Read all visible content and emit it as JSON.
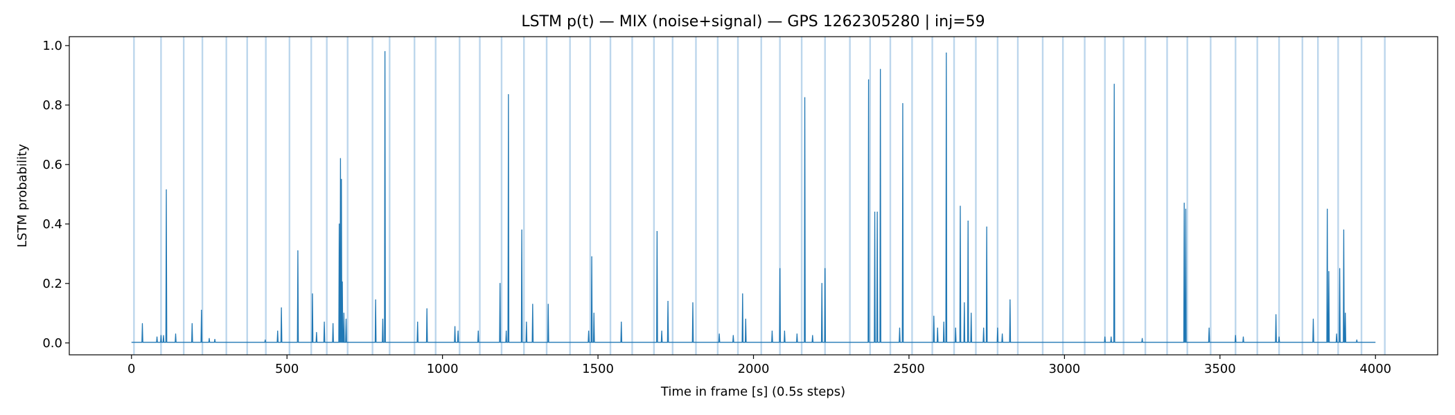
{
  "chart_data": {
    "type": "line",
    "title": "LSTM p(t) — MIX (noise+signal) — GPS 1262305280 | inj=59",
    "xlabel": "Time in frame [s] (0.5s steps)",
    "ylabel": "LSTM probability",
    "xlim": [
      -200,
      4200
    ],
    "ylim": [
      -0.04,
      1.03
    ],
    "x_ticks": [
      0,
      500,
      1000,
      1500,
      2000,
      2500,
      3000,
      3500,
      4000
    ],
    "y_ticks": [
      0.0,
      0.2,
      0.4,
      0.6,
      0.8,
      1.0
    ],
    "x_tick_labels": [
      "0",
      "500",
      "1000",
      "1500",
      "2000",
      "2500",
      "3000",
      "3500",
      "4000"
    ],
    "y_tick_labels": [
      "0.0",
      "0.2",
      "0.4",
      "0.6",
      "0.8",
      "1.0"
    ],
    "grid": false,
    "legend": "none",
    "baseline": 0.002,
    "x_end": 4000,
    "line_color": "#1f77b4",
    "injection_color": "#bcd6ec",
    "injection_times": [
      8,
      95,
      168,
      228,
      305,
      372,
      432,
      508,
      578,
      628,
      695,
      775,
      830,
      910,
      978,
      1055,
      1120,
      1190,
      1262,
      1335,
      1410,
      1475,
      1540,
      1610,
      1680,
      1740,
      1815,
      1885,
      1950,
      2025,
      2085,
      2155,
      2230,
      2310,
      2375,
      2440,
      2510,
      2575,
      2645,
      2715,
      2785,
      2850,
      2930,
      2995,
      3065,
      3130,
      3190,
      3260,
      3330,
      3395,
      3470,
      3550,
      3620,
      3690,
      3765,
      3815,
      3880,
      3955,
      4030
    ],
    "peaks": [
      {
        "x": 35,
        "y": 0.065
      },
      {
        "x": 82,
        "y": 0.02
      },
      {
        "x": 95,
        "y": 0.025
      },
      {
        "x": 103,
        "y": 0.025
      },
      {
        "x": 112,
        "y": 0.515
      },
      {
        "x": 142,
        "y": 0.03
      },
      {
        "x": 195,
        "y": 0.065
      },
      {
        "x": 225,
        "y": 0.11
      },
      {
        "x": 250,
        "y": 0.015
      },
      {
        "x": 268,
        "y": 0.012
      },
      {
        "x": 430,
        "y": 0.01
      },
      {
        "x": 470,
        "y": 0.04
      },
      {
        "x": 482,
        "y": 0.118
      },
      {
        "x": 535,
        "y": 0.31
      },
      {
        "x": 582,
        "y": 0.165
      },
      {
        "x": 595,
        "y": 0.035
      },
      {
        "x": 620,
        "y": 0.07
      },
      {
        "x": 648,
        "y": 0.065
      },
      {
        "x": 668,
        "y": 0.4
      },
      {
        "x": 672,
        "y": 0.62
      },
      {
        "x": 675,
        "y": 0.55
      },
      {
        "x": 678,
        "y": 0.205
      },
      {
        "x": 683,
        "y": 0.1
      },
      {
        "x": 690,
        "y": 0.08
      },
      {
        "x": 785,
        "y": 0.145
      },
      {
        "x": 808,
        "y": 0.08
      },
      {
        "x": 815,
        "y": 0.98
      },
      {
        "x": 920,
        "y": 0.07
      },
      {
        "x": 950,
        "y": 0.115
      },
      {
        "x": 1040,
        "y": 0.055
      },
      {
        "x": 1050,
        "y": 0.04
      },
      {
        "x": 1115,
        "y": 0.04
      },
      {
        "x": 1185,
        "y": 0.2
      },
      {
        "x": 1205,
        "y": 0.04
      },
      {
        "x": 1212,
        "y": 0.835
      },
      {
        "x": 1255,
        "y": 0.38
      },
      {
        "x": 1270,
        "y": 0.07
      },
      {
        "x": 1290,
        "y": 0.13
      },
      {
        "x": 1340,
        "y": 0.13
      },
      {
        "x": 1470,
        "y": 0.04
      },
      {
        "x": 1480,
        "y": 0.29
      },
      {
        "x": 1487,
        "y": 0.1
      },
      {
        "x": 1575,
        "y": 0.07
      },
      {
        "x": 1690,
        "y": 0.375
      },
      {
        "x": 1705,
        "y": 0.04
      },
      {
        "x": 1725,
        "y": 0.14
      },
      {
        "x": 1805,
        "y": 0.135
      },
      {
        "x": 1890,
        "y": 0.03
      },
      {
        "x": 1935,
        "y": 0.025
      },
      {
        "x": 1965,
        "y": 0.165
      },
      {
        "x": 1975,
        "y": 0.08
      },
      {
        "x": 2060,
        "y": 0.04
      },
      {
        "x": 2085,
        "y": 0.25
      },
      {
        "x": 2100,
        "y": 0.04
      },
      {
        "x": 2140,
        "y": 0.03
      },
      {
        "x": 2165,
        "y": 0.825
      },
      {
        "x": 2190,
        "y": 0.025
      },
      {
        "x": 2220,
        "y": 0.2
      },
      {
        "x": 2230,
        "y": 0.25
      },
      {
        "x": 2370,
        "y": 0.885
      },
      {
        "x": 2390,
        "y": 0.44
      },
      {
        "x": 2398,
        "y": 0.44
      },
      {
        "x": 2408,
        "y": 0.92
      },
      {
        "x": 2470,
        "y": 0.05
      },
      {
        "x": 2480,
        "y": 0.805
      },
      {
        "x": 2580,
        "y": 0.09
      },
      {
        "x": 2592,
        "y": 0.05
      },
      {
        "x": 2612,
        "y": 0.07
      },
      {
        "x": 2620,
        "y": 0.975
      },
      {
        "x": 2650,
        "y": 0.05
      },
      {
        "x": 2665,
        "y": 0.46
      },
      {
        "x": 2678,
        "y": 0.135
      },
      {
        "x": 2690,
        "y": 0.41
      },
      {
        "x": 2700,
        "y": 0.1
      },
      {
        "x": 2740,
        "y": 0.05
      },
      {
        "x": 2750,
        "y": 0.39
      },
      {
        "x": 2785,
        "y": 0.05
      },
      {
        "x": 2800,
        "y": 0.03
      },
      {
        "x": 2825,
        "y": 0.145
      },
      {
        "x": 3130,
        "y": 0.02
      },
      {
        "x": 3150,
        "y": 0.02
      },
      {
        "x": 3160,
        "y": 0.87
      },
      {
        "x": 3250,
        "y": 0.015
      },
      {
        "x": 3385,
        "y": 0.47
      },
      {
        "x": 3390,
        "y": 0.45
      },
      {
        "x": 3465,
        "y": 0.05
      },
      {
        "x": 3550,
        "y": 0.025
      },
      {
        "x": 3575,
        "y": 0.02
      },
      {
        "x": 3680,
        "y": 0.095
      },
      {
        "x": 3690,
        "y": 0.02
      },
      {
        "x": 3800,
        "y": 0.08
      },
      {
        "x": 3845,
        "y": 0.45
      },
      {
        "x": 3850,
        "y": 0.24
      },
      {
        "x": 3875,
        "y": 0.03
      },
      {
        "x": 3885,
        "y": 0.25
      },
      {
        "x": 3898,
        "y": 0.38
      },
      {
        "x": 3903,
        "y": 0.1
      },
      {
        "x": 3940,
        "y": 0.01
      }
    ]
  }
}
